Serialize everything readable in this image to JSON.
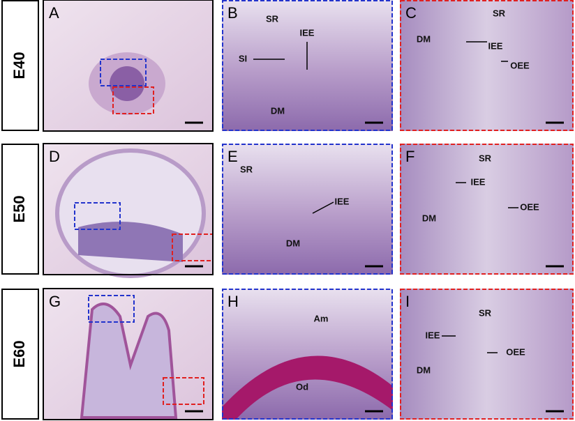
{
  "rows": [
    {
      "stage": "E40",
      "panels": [
        {
          "letter": "A",
          "labels": []
        },
        {
          "letter": "B",
          "labels": [
            "SR",
            "IEE",
            "SI",
            "DM"
          ]
        },
        {
          "letter": "C",
          "labels": [
            "SR",
            "DM",
            "IEE",
            "OEE"
          ]
        }
      ]
    },
    {
      "stage": "E50",
      "panels": [
        {
          "letter": "D",
          "labels": []
        },
        {
          "letter": "E",
          "labels": [
            "SR",
            "IEE",
            "DM"
          ]
        },
        {
          "letter": "F",
          "labels": [
            "SR",
            "IEE",
            "DM",
            "OEE"
          ]
        }
      ]
    },
    {
      "stage": "E60",
      "panels": [
        {
          "letter": "G",
          "labels": []
        },
        {
          "letter": "H",
          "labels": [
            "Am",
            "Od"
          ]
        },
        {
          "letter": "I",
          "labels": [
            "SR",
            "IEE",
            "DM",
            "OEE"
          ]
        }
      ]
    }
  ]
}
